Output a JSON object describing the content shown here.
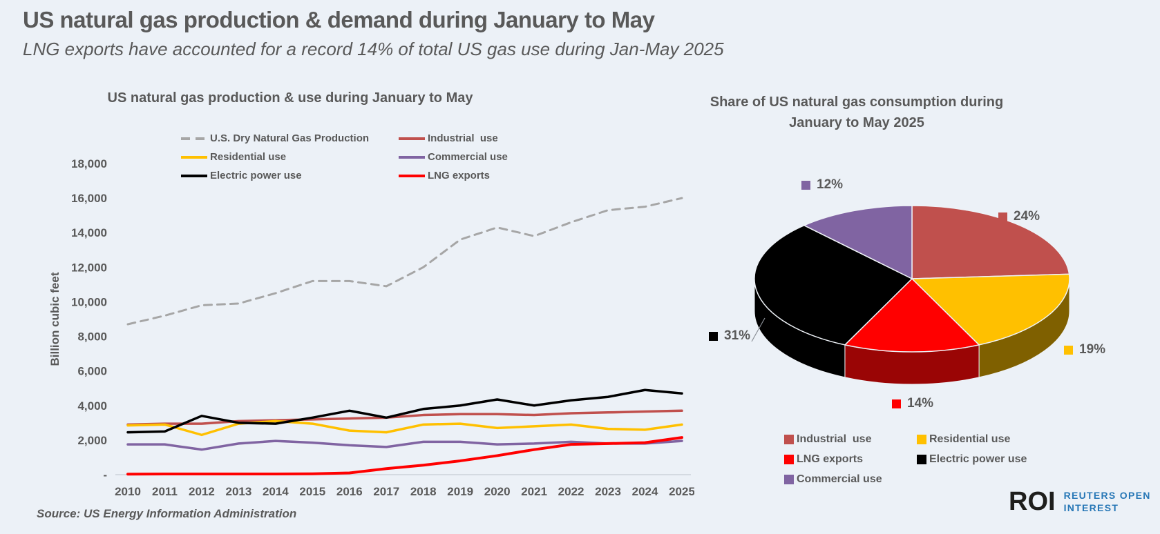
{
  "page": {
    "title": "US natural gas production & demand during January to May",
    "subtitle": "LNG exports have accounted for a record 14% of total US gas use during Jan-May 2025",
    "source": "Source: US Energy Information Administration",
    "background_color": "#ECF1F7",
    "text_color": "#595959",
    "logo": {
      "abbr": "ROI",
      "line1": "REUTERS OPEN",
      "line2": "INTEREST",
      "blue": "#2777B6"
    }
  },
  "chart_data": [
    {
      "type": "line",
      "title": "US natural gas production & use during January to May",
      "ylabel": "Billion cubic feet",
      "ylim": [
        0,
        18000
      ],
      "grid": false,
      "legend_position": "top",
      "x": [
        "2010",
        "2011",
        "2012",
        "2013",
        "2014",
        "2015",
        "2016",
        "2017",
        "2018",
        "2019",
        "2020",
        "2021",
        "2022",
        "2023",
        "2024",
        "2025"
      ],
      "yticks": [
        {
          "v": 0,
          "label": "-"
        },
        {
          "v": 2000,
          "label": "2,000"
        },
        {
          "v": 4000,
          "label": "4,000"
        },
        {
          "v": 6000,
          "label": "6,000"
        },
        {
          "v": 8000,
          "label": "8,000"
        },
        {
          "v": 10000,
          "label": "10,000"
        },
        {
          "v": 12000,
          "label": "12,000"
        },
        {
          "v": 14000,
          "label": "14,000"
        },
        {
          "v": 16000,
          "label": "16,000"
        },
        {
          "v": 18000,
          "label": "18,000"
        }
      ],
      "series": [
        {
          "name": "U.S. Dry Natural Gas Production",
          "color": "#A6A6A6",
          "dash": true,
          "width": 3,
          "values": [
            8700,
            9200,
            9800,
            9900,
            10500,
            11200,
            11200,
            10900,
            12000,
            13600,
            14300,
            13800,
            14600,
            15300,
            15500,
            16000
          ]
        },
        {
          "name": "Industrial  use",
          "color": "#C0504D",
          "dash": false,
          "width": 3.5,
          "values": [
            2900,
            2950,
            2950,
            3100,
            3150,
            3200,
            3250,
            3300,
            3450,
            3500,
            3500,
            3450,
            3550,
            3600,
            3650,
            3700
          ]
        },
        {
          "name": "Residential use",
          "color": "#FFC000",
          "dash": false,
          "width": 3.5,
          "values": [
            2850,
            2900,
            2300,
            2950,
            3100,
            2950,
            2550,
            2450,
            2900,
            2950,
            2700,
            2800,
            2900,
            2650,
            2600,
            2900
          ]
        },
        {
          "name": "Commercial use",
          "color": "#8064A2",
          "dash": false,
          "width": 3.5,
          "values": [
            1750,
            1750,
            1450,
            1800,
            1950,
            1850,
            1700,
            1600,
            1900,
            1900,
            1750,
            1800,
            1900,
            1800,
            1800,
            1950
          ]
        },
        {
          "name": "Electric power use",
          "color": "#000000",
          "dash": false,
          "width": 3.5,
          "values": [
            2450,
            2500,
            3400,
            3000,
            2950,
            3300,
            3700,
            3300,
            3800,
            4000,
            4350,
            4000,
            4300,
            4500,
            4900,
            4700
          ]
        },
        {
          "name": "LNG exports",
          "color": "#FF0000",
          "dash": false,
          "width": 4,
          "values": [
            30,
            40,
            40,
            40,
            40,
            50,
            100,
            350,
            550,
            800,
            1100,
            1450,
            1750,
            1800,
            1850,
            2150
          ]
        }
      ]
    },
    {
      "type": "pie",
      "style": "3d",
      "title": "Share of US natural gas consumption during January to May 2025",
      "start_angle_deg": 0,
      "clockwise": true,
      "slices": [
        {
          "label": "Industrial  use",
          "value": 24,
          "pct_label": "24%",
          "color": "#C0504D",
          "rim": "#7A2E2C"
        },
        {
          "label": "Residential use",
          "value": 19,
          "pct_label": "19%",
          "color": "#FFC000",
          "rim": "#7F6000"
        },
        {
          "label": "LNG exports",
          "value": 14,
          "pct_label": "14%",
          "color": "#FF0000",
          "rim": "#9A0505"
        },
        {
          "label": "Electric power use",
          "value": 31,
          "pct_label": "31%",
          "color": "#000000",
          "rim": "#000000"
        },
        {
          "label": "Commercial use",
          "value": 12,
          "pct_label": "12%",
          "color": "#8064A2",
          "rim": "#4F3D68"
        }
      ]
    }
  ]
}
